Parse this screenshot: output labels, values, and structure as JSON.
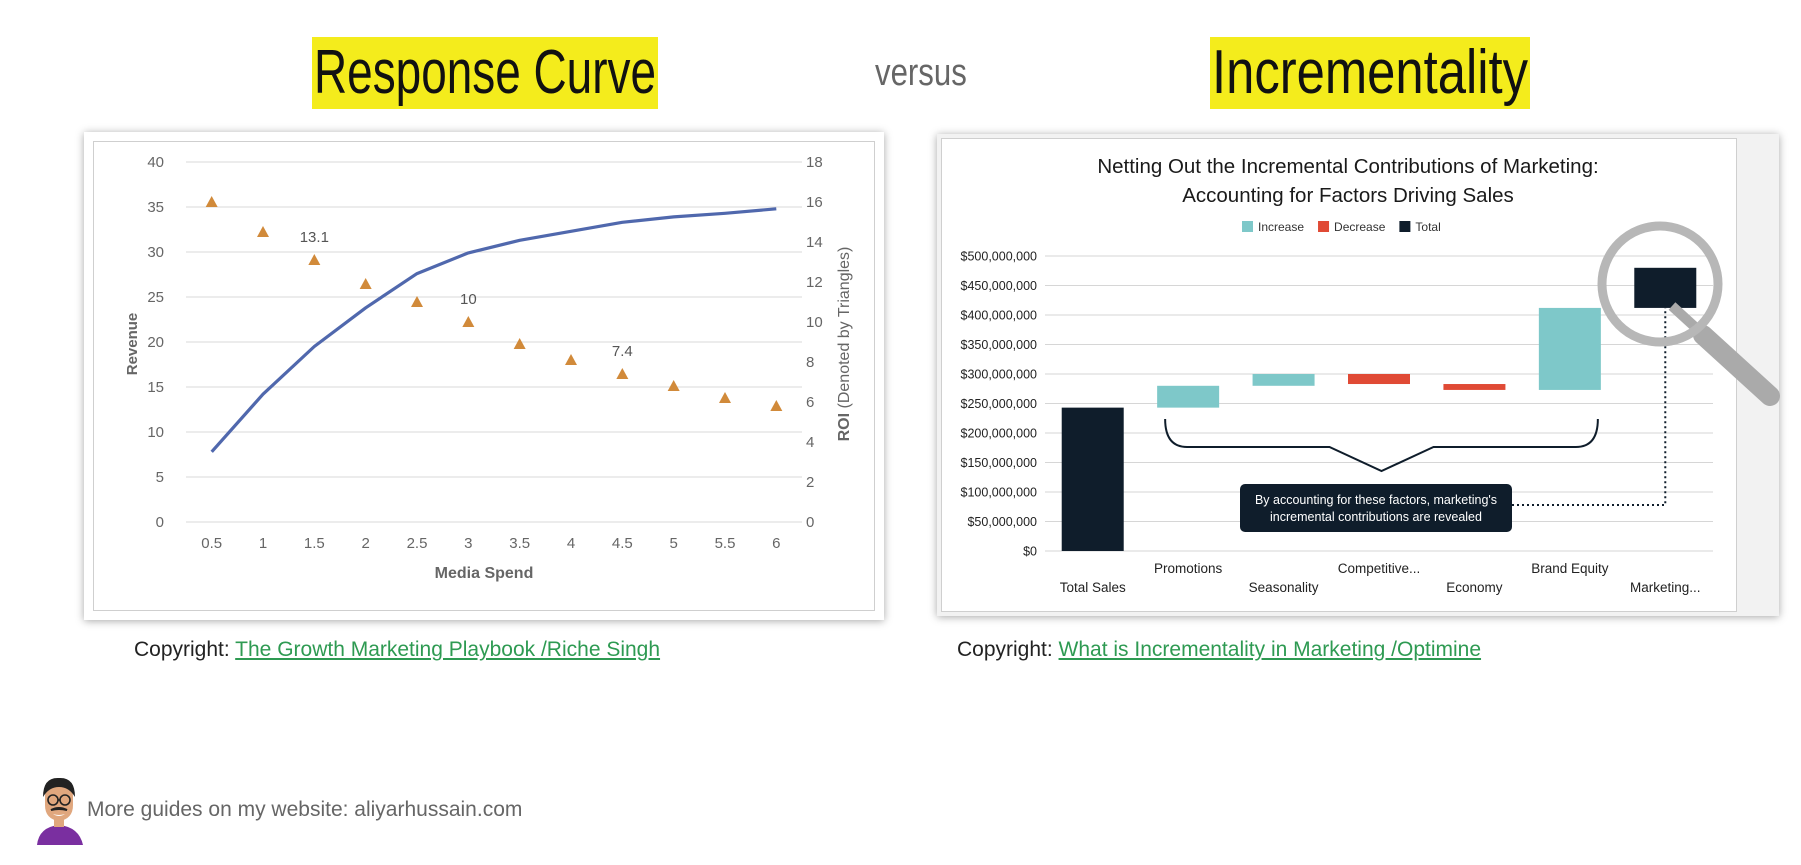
{
  "header": {
    "left_title": "Response Curve",
    "versus": "versus",
    "right_title": "Incrementality",
    "highlight_color": "#f4ec1c"
  },
  "chart_data": [
    {
      "type": "line",
      "xlabel": "Media Spend",
      "ylabel": "Revenue",
      "y2label_bold": "ROI",
      "y2label_rest": " (Denoted by Triangles)",
      "categories": [
        "0.5",
        "1",
        "1.5",
        "2",
        "2.5",
        "3",
        "3.5",
        "4",
        "4.5",
        "5",
        "5.5",
        "6"
      ],
      "ylim": [
        0,
        40
      ],
      "yticks": [
        0,
        5,
        10,
        15,
        20,
        25,
        30,
        35,
        40
      ],
      "y2lim": [
        0,
        18
      ],
      "y2ticks": [
        0,
        2,
        4,
        6,
        8,
        10,
        12,
        14,
        16,
        18
      ],
      "grid": true,
      "series": [
        {
          "type": "line",
          "axis": "left",
          "color": "#5068ad",
          "values": [
            7.8,
            14.2,
            19.5,
            23.8,
            27.6,
            29.9,
            31.3,
            32.3,
            33.3,
            33.9,
            34.3,
            34.8
          ]
        },
        {
          "type": "scatter",
          "marker": "triangle",
          "axis": "right",
          "color": "#d18a3a",
          "values": [
            16.0,
            14.5,
            13.1,
            11.9,
            11.0,
            10.0,
            8.9,
            8.1,
            7.4,
            6.8,
            6.2,
            5.8
          ],
          "data_labels": [
            {
              "index": 2,
              "text": "13.1"
            },
            {
              "index": 5,
              "text": "10"
            },
            {
              "index": 8,
              "text": "7.4"
            }
          ]
        }
      ]
    },
    {
      "type": "bar",
      "subtype": "waterfall",
      "title_line1": "Netting Out the Incremental Contributions of Marketing:",
      "title_line2": "Accounting for Factors Driving Sales",
      "legend": [
        {
          "label": "Increase",
          "color": "#7ec8c9"
        },
        {
          "label": "Decrease",
          "color": "#e04a35"
        },
        {
          "label": "Total",
          "color": "#0f1d2b"
        }
      ],
      "ylim": [
        0,
        500000000
      ],
      "yticks": [
        "$0",
        "$50,000,000",
        "$100,000,000",
        "$150,000,000",
        "$200,000,000",
        "$250,000,000",
        "$300,000,000",
        "$350,000,000",
        "$400,000,000",
        "$450,000,000",
        "$500,000,000"
      ],
      "grid": true,
      "bars": [
        {
          "label": "Total Sales",
          "kind": "total",
          "start": 0,
          "end": 243000000
        },
        {
          "label": "Promotions",
          "kind": "increase",
          "start": 243000000,
          "end": 280000000
        },
        {
          "label": "Seasonality",
          "kind": "increase",
          "start": 280000000,
          "end": 300000000
        },
        {
          "label": "Competitive...",
          "kind": "decrease",
          "start": 300000000,
          "end": 283000000
        },
        {
          "label": "Economy",
          "kind": "decrease",
          "start": 283000000,
          "end": 273000000
        },
        {
          "label": "Brand Equity",
          "kind": "increase",
          "start": 273000000,
          "end": 412000000
        },
        {
          "label": "Marketing...",
          "kind": "total",
          "start": 412000000,
          "end": 480000000
        }
      ],
      "callout_line1": "By accounting for these factors, marketing's",
      "callout_line2": "incremental contributions are revealed"
    }
  ],
  "copyright_left": {
    "prefix": "Copyright: ",
    "link": "The Growth Marketing Playbook /Riche Singh"
  },
  "copyright_right": {
    "prefix": "Copyright: ",
    "link": "What is Incrementality in Marketing /Optimine"
  },
  "footer": {
    "text": "More guides on my website: aliyarhussain.com",
    "avatar_icon": "cartoon-avatar-icon"
  }
}
